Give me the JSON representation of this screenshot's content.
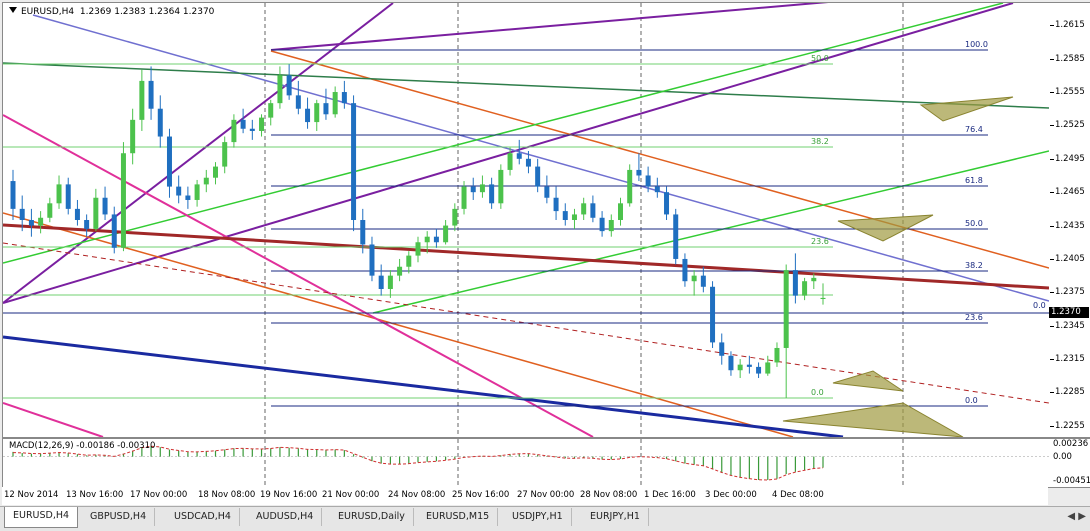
{
  "chart_header": {
    "symbol": "EURUSD,H4",
    "ohlc": "1.2369 1.2383 1.2364 1.2370"
  },
  "macd_header": {
    "label": "MACD(12,26,9) -0.00186 -0.00310"
  },
  "current_price": "1.2370",
  "price_axis": [
    "1.2615",
    "1.2585",
    "1.2555",
    "1.2525",
    "1.2495",
    "1.2465",
    "1.2435",
    "1.2405",
    "1.2375",
    "1.2345",
    "1.2315",
    "1.2285",
    "1.2255"
  ],
  "macd_axis": [
    "0.00236",
    "0.00",
    "-0.00451"
  ],
  "time_axis": [
    "12 Nov 2014",
    "13 Nov 16:00",
    "17 Nov 00:00",
    "18 Nov 08:00",
    "19 Nov 16:00",
    "21 Nov 00:00",
    "24 Nov 08:00",
    "25 Nov 16:00",
    "27 Nov 00:00",
    "28 Nov 08:00",
    "1 Dec 16:00",
    "3 Dec 00:00",
    "4 Dec 08:00"
  ],
  "fib_levels_blue": [
    "100.0",
    "76.4",
    "61.8",
    "50.0",
    "38.2",
    "23.6",
    "0.0"
  ],
  "fib_levels_green": [
    "50.0",
    "38.2",
    "23.6",
    "0.0"
  ],
  "fib_zero_right": "0.0",
  "tabs": [
    {
      "label": "EURUSD,H4",
      "active": true
    },
    {
      "label": "GBPUSD,H4",
      "active": false
    },
    {
      "label": "USDCAD,H4",
      "active": false
    },
    {
      "label": "AUDUSD,H4",
      "active": false
    },
    {
      "label": "EURUSD,Daily",
      "active": false
    },
    {
      "label": "EURUSD,M15",
      "active": false
    },
    {
      "label": "USDJPY,H1",
      "active": false
    },
    {
      "label": "EURJPY,H1",
      "active": false
    }
  ],
  "chart_data": {
    "type": "candlestick",
    "symbol": "EURUSD",
    "timeframe": "H4",
    "ylim": [
      1.2245,
      1.2635
    ],
    "candles": [
      [
        1.2475,
        1.2485,
        1.244,
        1.245
      ],
      [
        1.245,
        1.2462,
        1.243,
        1.244
      ],
      [
        1.244,
        1.245,
        1.2425,
        1.2435
      ],
      [
        1.2435,
        1.2448,
        1.2428,
        1.2442
      ],
      [
        1.2442,
        1.246,
        1.2438,
        1.2455
      ],
      [
        1.2455,
        1.248,
        1.245,
        1.2472
      ],
      [
        1.2472,
        1.2478,
        1.2445,
        1.245
      ],
      [
        1.245,
        1.2458,
        1.2435,
        1.244
      ],
      [
        1.244,
        1.2445,
        1.2425,
        1.2432
      ],
      [
        1.2432,
        1.2468,
        1.243,
        1.246
      ],
      [
        1.246,
        1.247,
        1.244,
        1.2445
      ],
      [
        1.2445,
        1.2452,
        1.241,
        1.2415
      ],
      [
        1.2415,
        1.251,
        1.2412,
        1.25
      ],
      [
        1.25,
        1.254,
        1.249,
        1.253
      ],
      [
        1.253,
        1.2575,
        1.252,
        1.2565
      ],
      [
        1.2565,
        1.2578,
        1.253,
        1.254
      ],
      [
        1.254,
        1.2552,
        1.2505,
        1.2515
      ],
      [
        1.2515,
        1.2522,
        1.246,
        1.247
      ],
      [
        1.247,
        1.248,
        1.2455,
        1.2462
      ],
      [
        1.2462,
        1.247,
        1.245,
        1.2458
      ],
      [
        1.2458,
        1.2476,
        1.2452,
        1.2472
      ],
      [
        1.2472,
        1.2485,
        1.2465,
        1.2478
      ],
      [
        1.2478,
        1.2492,
        1.2472,
        1.2488
      ],
      [
        1.2488,
        1.2515,
        1.2482,
        1.251
      ],
      [
        1.251,
        1.2535,
        1.2505,
        1.253
      ],
      [
        1.253,
        1.254,
        1.2518,
        1.2522
      ],
      [
        1.2522,
        1.253,
        1.2512,
        1.252
      ],
      [
        1.252,
        1.2535,
        1.2515,
        1.2532
      ],
      [
        1.2532,
        1.2548,
        1.2525,
        1.2545
      ],
      [
        1.2545,
        1.2578,
        1.254,
        1.257
      ],
      [
        1.257,
        1.258,
        1.2548,
        1.2552
      ],
      [
        1.2552,
        1.2565,
        1.2535,
        1.254
      ],
      [
        1.254,
        1.255,
        1.2522,
        1.2528
      ],
      [
        1.2528,
        1.2548,
        1.252,
        1.2545
      ],
      [
        1.2545,
        1.2558,
        1.253,
        1.2535
      ],
      [
        1.2535,
        1.256,
        1.2532,
        1.2555
      ],
      [
        1.2555,
        1.2565,
        1.254,
        1.2545
      ],
      [
        1.2545,
        1.2552,
        1.243,
        1.244
      ],
      [
        1.244,
        1.245,
        1.241,
        1.2418
      ],
      [
        1.2418,
        1.2425,
        1.2385,
        1.239
      ],
      [
        1.239,
        1.24,
        1.2372,
        1.2378
      ],
      [
        1.2378,
        1.2395,
        1.237,
        1.239
      ],
      [
        1.239,
        1.2405,
        1.2385,
        1.2398
      ],
      [
        1.2398,
        1.2412,
        1.2392,
        1.2408
      ],
      [
        1.2408,
        1.2425,
        1.2402,
        1.242
      ],
      [
        1.242,
        1.243,
        1.241,
        1.2425
      ],
      [
        1.2425,
        1.2432,
        1.2415,
        1.242
      ],
      [
        1.242,
        1.244,
        1.2418,
        1.2435
      ],
      [
        1.2435,
        1.2455,
        1.243,
        1.245
      ],
      [
        1.245,
        1.2475,
        1.2445,
        1.247
      ],
      [
        1.247,
        1.2478,
        1.2458,
        1.2465
      ],
      [
        1.2465,
        1.248,
        1.246,
        1.2472
      ],
      [
        1.2472,
        1.2478,
        1.245,
        1.2455
      ],
      [
        1.2455,
        1.249,
        1.245,
        1.2485
      ],
      [
        1.2485,
        1.2505,
        1.248,
        1.25
      ],
      [
        1.25,
        1.2512,
        1.249,
        1.2495
      ],
      [
        1.2495,
        1.2502,
        1.2482,
        1.2488
      ],
      [
        1.2488,
        1.2495,
        1.2465,
        1.247
      ],
      [
        1.247,
        1.248,
        1.2455,
        1.246
      ],
      [
        1.246,
        1.247,
        1.244,
        1.2448
      ],
      [
        1.2448,
        1.2455,
        1.2435,
        1.244
      ],
      [
        1.244,
        1.245,
        1.2432,
        1.2445
      ],
      [
        1.2445,
        1.246,
        1.244,
        1.2455
      ],
      [
        1.2455,
        1.2462,
        1.2438,
        1.2442
      ],
      [
        1.2442,
        1.2448,
        1.2425,
        1.243
      ],
      [
        1.243,
        1.2445,
        1.2425,
        1.244
      ],
      [
        1.244,
        1.246,
        1.2435,
        1.2455
      ],
      [
        1.2455,
        1.249,
        1.2452,
        1.2485
      ],
      [
        1.2485,
        1.25,
        1.2475,
        1.248
      ],
      [
        1.248,
        1.2488,
        1.2465,
        1.247
      ],
      [
        1.247,
        1.2478,
        1.246,
        1.2465
      ],
      [
        1.2465,
        1.247,
        1.244,
        1.2445
      ],
      [
        1.2445,
        1.245,
        1.24,
        1.2405
      ],
      [
        1.2405,
        1.241,
        1.238,
        1.2385
      ],
      [
        1.2385,
        1.2395,
        1.2372,
        1.239
      ],
      [
        1.239,
        1.2398,
        1.2375,
        1.238
      ],
      [
        1.238,
        1.2385,
        1.2325,
        1.233
      ],
      [
        1.233,
        1.2338,
        1.231,
        1.2318
      ],
      [
        1.2318,
        1.2322,
        1.23,
        1.2305
      ],
      [
        1.2305,
        1.2315,
        1.2298,
        1.231
      ],
      [
        1.231,
        1.2318,
        1.2302,
        1.2308
      ],
      [
        1.2308,
        1.2312,
        1.2298,
        1.2302
      ],
      [
        1.2302,
        1.2318,
        1.23,
        1.2312
      ],
      [
        1.2312,
        1.233,
        1.2308,
        1.2325
      ],
      [
        1.2325,
        1.24,
        1.228,
        1.2395
      ],
      [
        1.2395,
        1.241,
        1.2365,
        1.2372
      ],
      [
        1.2372,
        1.2388,
        1.2368,
        1.2385
      ],
      [
        1.2385,
        1.2392,
        1.2378,
        1.2388
      ],
      [
        1.2369,
        1.2383,
        1.2364,
        1.237
      ]
    ],
    "macd_hist": [
      0.0008,
      0.0006,
      0.0005,
      0.0005,
      0.0006,
      0.0007,
      0.0006,
      0.0004,
      0.0002,
      0.0003,
      0.0002,
      0.0,
      0.0005,
      0.001,
      0.0016,
      0.0018,
      0.0016,
      0.0012,
      0.001,
      0.0008,
      0.0008,
      0.0009,
      0.001,
      0.0012,
      0.0014,
      0.0014,
      0.0013,
      0.0013,
      0.0014,
      0.0016,
      0.0015,
      0.0014,
      0.0012,
      0.0012,
      0.0011,
      0.0012,
      0.0011,
      0.0004,
      -0.0002,
      -0.0008,
      -0.0012,
      -0.0013,
      -0.0013,
      -0.0012,
      -0.001,
      -0.0009,
      -0.0008,
      -0.0006,
      -0.0004,
      -0.0001,
      0.0,
      0.0001,
      0.0,
      0.0002,
      0.0004,
      0.0005,
      0.0005,
      0.0003,
      0.0001,
      -0.0001,
      -0.0003,
      -0.0003,
      -0.0002,
      -0.0003,
      -0.0005,
      -0.0005,
      -0.0004,
      -0.0001,
      0.0,
      -0.0001,
      -0.0002,
      -0.0004,
      -0.0008,
      -0.0012,
      -0.0014,
      -0.0016,
      -0.0022,
      -0.0028,
      -0.0033,
      -0.0036,
      -0.0038,
      -0.004,
      -0.004,
      -0.0038,
      -0.003,
      -0.0026,
      -0.0023,
      -0.002,
      -0.0019
    ],
    "macd_ylim": [
      -0.0052,
      0.003
    ]
  }
}
